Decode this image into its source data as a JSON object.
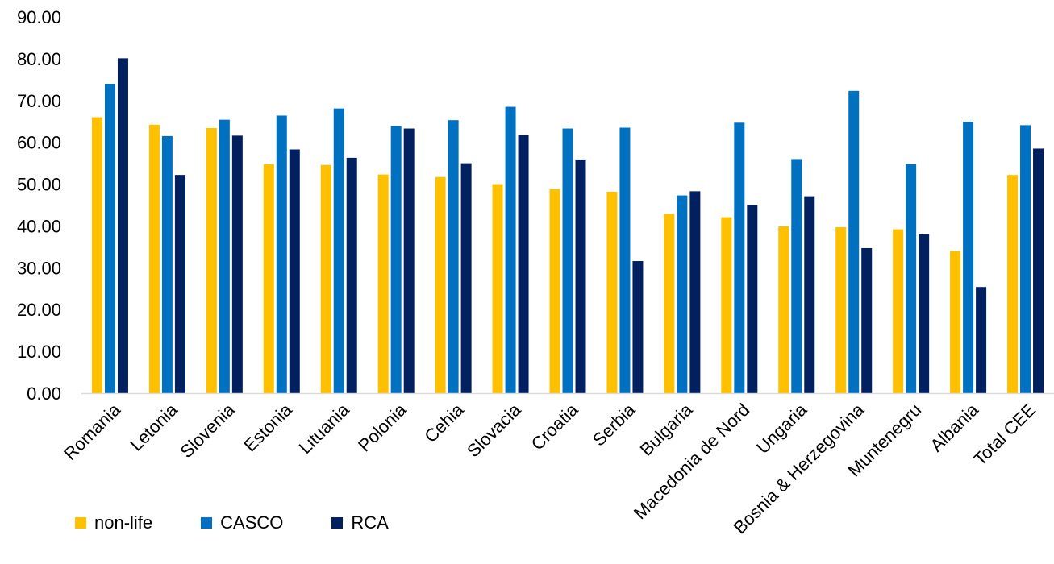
{
  "chart_data": {
    "type": "bar",
    "title": "",
    "xlabel": "",
    "ylabel": "",
    "ylim": [
      0,
      90
    ],
    "ytick_step": 10,
    "ytick_format_decimals": 2,
    "grid": false,
    "legend_position": "bottom-left",
    "categories": [
      "Romania",
      "Letonia",
      "Slovenia",
      "Estonia",
      "Lituania",
      "Polonia",
      "Cehia",
      "Slovacia",
      "Croatia",
      "Serbia",
      "Bulgaria",
      "Macedonia de Nord",
      "Ungaria",
      "Bosnia & Herzegovina",
      "Muntenegru",
      "Albania",
      "Total CEE"
    ],
    "series": [
      {
        "name": "non-life",
        "color": "#FFC000",
        "values": [
          66.0,
          64.2,
          63.4,
          54.8,
          54.6,
          52.3,
          51.7,
          50.0,
          48.8,
          48.2,
          42.9,
          42.1,
          39.9,
          39.7,
          39.2,
          34.0,
          52.2
        ]
      },
      {
        "name": "CASCO",
        "color": "#0070C0",
        "values": [
          74.0,
          61.5,
          65.4,
          66.4,
          68.1,
          63.9,
          65.3,
          68.5,
          63.3,
          63.5,
          47.3,
          64.7,
          56.0,
          72.3,
          54.8,
          64.9,
          64.1
        ]
      },
      {
        "name": "RCA",
        "color": "#002060",
        "values": [
          80.1,
          52.2,
          61.6,
          58.3,
          56.3,
          63.3,
          55.0,
          61.7,
          55.9,
          31.6,
          48.3,
          45.0,
          47.1,
          34.7,
          38.0,
          25.4,
          58.5
        ]
      }
    ]
  }
}
